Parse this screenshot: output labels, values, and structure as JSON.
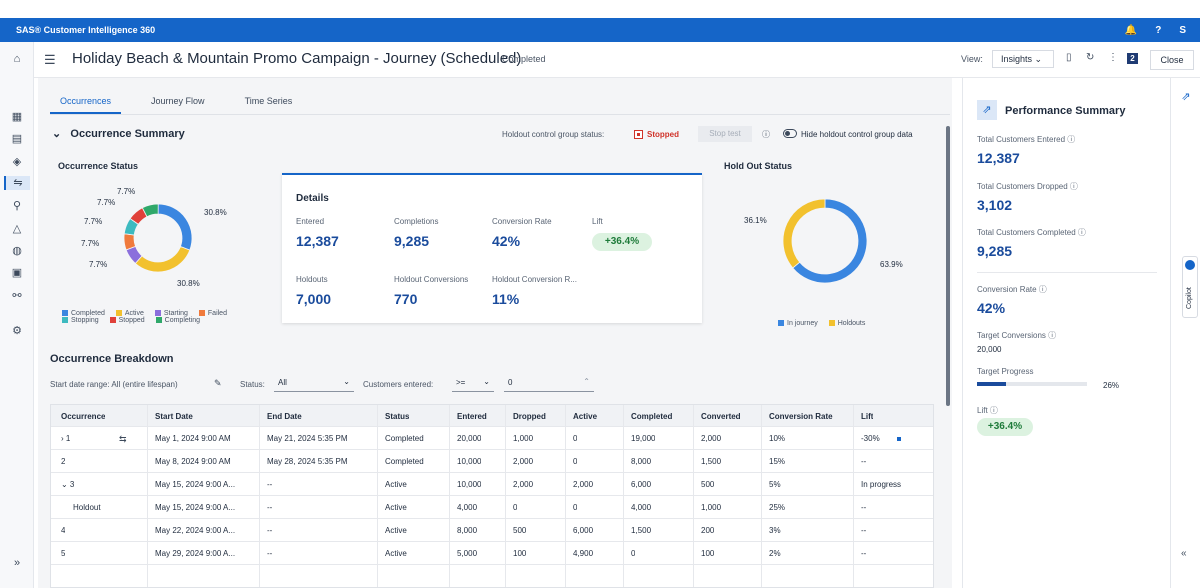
{
  "app": {
    "name": "SAS® Customer Intelligence 360",
    "top_actions": [
      "🔔",
      "?",
      "S"
    ]
  },
  "header": {
    "title": "Holiday Beach & Mountain Promo Campaign - Journey (Scheduled)",
    "status": "Completed",
    "view_label": "View:",
    "view_value": "Insights ⌄",
    "page_badge": "2",
    "close_label": "Close"
  },
  "tabs": [
    {
      "label": "Occurrences",
      "active": true
    },
    {
      "label": "Journey Flow",
      "active": false
    },
    {
      "label": "Time Series",
      "active": false
    }
  ],
  "summary": {
    "title": "Occurrence Summary",
    "holdout_status_label": "Holdout control group status:",
    "holdout_status_value": "Stopped",
    "stop_test_label": "Stop test",
    "hide_holdout_label": "Hide holdout control group data"
  },
  "occurrence_status": {
    "title": "Occurrence Status",
    "labels": [
      "7.7%",
      "7.7%",
      "7.7%",
      "7.7%",
      "7.7%",
      "30.8%",
      "30.8%"
    ],
    "legend": [
      {
        "label": "Completed",
        "color": "#3a86e0"
      },
      {
        "label": "Active",
        "color": "#f2c12e"
      },
      {
        "label": "Starting",
        "color": "#8b6fdc"
      },
      {
        "label": "Failed",
        "color": "#f07a3c"
      },
      {
        "label": "Stopping",
        "color": "#3dbac0"
      },
      {
        "label": "Stopped",
        "color": "#e0413a"
      },
      {
        "label": "Completing",
        "color": "#2fa86a"
      }
    ]
  },
  "details": {
    "title": "Details",
    "metrics": [
      {
        "label": "Entered",
        "value": "12,387"
      },
      {
        "label": "Completions",
        "value": "9,285"
      },
      {
        "label": "Conversion Rate",
        "value": "42%"
      },
      {
        "label": "Lift",
        "value": "+36.4%"
      },
      {
        "label": "Holdouts",
        "value": "7,000"
      },
      {
        "label": "Holdout Conversions",
        "value": "770"
      },
      {
        "label": "Holdout Conversion R...",
        "value": "11%"
      }
    ]
  },
  "holdout_status": {
    "title": "Hold Out Status",
    "labels": [
      "36.1%",
      "63.9%"
    ],
    "legend": [
      {
        "label": "In journey",
        "color": "#3a86e0"
      },
      {
        "label": "Holdouts",
        "color": "#f2c12e"
      }
    ]
  },
  "breakdown": {
    "title": "Occurrence Breakdown",
    "date_range_label": "Start date range: All (entire lifespan)",
    "status_label": "Status:",
    "status_value": "All",
    "customers_label": "Customers entered:",
    "customers_op": ">=",
    "customers_value": "0",
    "columns": [
      "Occurrence",
      "Start Date",
      "End Date",
      "Status",
      "Entered",
      "Dropped",
      "Active",
      "Completed",
      "Converted",
      "Conversion Rate",
      "Lift"
    ],
    "rows": [
      [
        "› 1",
        "May 1, 2024 9:00 AM",
        "May 21, 2024 5:35 PM",
        "Completed",
        "20,000",
        "1,000",
        "0",
        "19,000",
        "2,000",
        "10%",
        "-30%"
      ],
      [
        "2",
        "May 8, 2024 9:00 AM",
        "May 28, 2024 5:35 PM",
        "Completed",
        "10,000",
        "2,000",
        "0",
        "8,000",
        "1,500",
        "15%",
        "--"
      ],
      [
        "⌄ 3",
        "May 15, 2024 9:00 A...",
        "--",
        "Active",
        "10,000",
        "2,000",
        "2,000",
        "6,000",
        "500",
        "5%",
        "In progress"
      ],
      [
        "Holdout",
        "May 15, 2024 9:00 A...",
        "--",
        "Active",
        "4,000",
        "0",
        "0",
        "4,000",
        "1,000",
        "25%",
        "--"
      ],
      [
        "4",
        "May 22, 2024 9:00 A...",
        "--",
        "Active",
        "8,000",
        "500",
        "6,000",
        "1,500",
        "200",
        "3%",
        "--"
      ],
      [
        "5",
        "May 29, 2024 9:00 A...",
        "--",
        "Active",
        "5,000",
        "100",
        "4,900",
        "0",
        "100",
        "2%",
        "--"
      ]
    ]
  },
  "performance": {
    "title": "Performance Summary",
    "entered_label": "Total Customers Entered ⓘ",
    "entered_value": "12,387",
    "dropped_label": "Total Customers Dropped ⓘ",
    "dropped_value": "3,102",
    "completed_label": "Total Customers Completed ⓘ",
    "completed_value": "9,285",
    "conv_rate_label": "Conversion Rate ⓘ",
    "conv_rate_value": "42%",
    "target_conv_label": "Target Conversions ⓘ",
    "target_conv_value": "20,000",
    "target_progress_label": "Target Progress",
    "target_progress_value": "26%",
    "target_progress_fraction": 0.26,
    "lift_label": "Lift ⓘ",
    "lift_value": "+36.4%"
  },
  "copilot": {
    "label": "Copilot"
  }
}
